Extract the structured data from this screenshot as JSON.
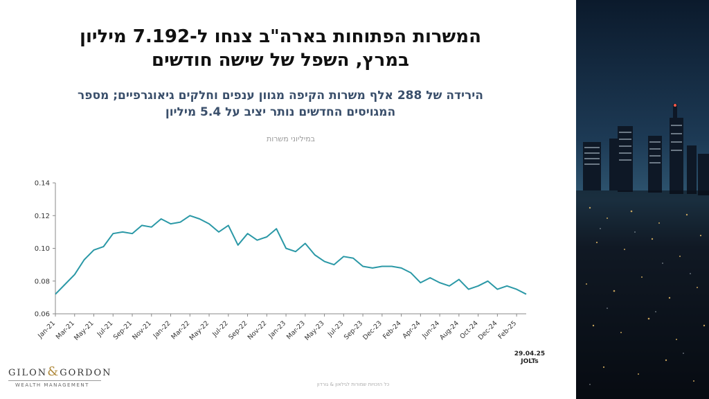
{
  "header": {
    "title_line1": "המשרות הפתוחות בארה\"ב צנחו ל-7.192 מיליון",
    "title_line2": "במרץ, השפל של שישה חודשים",
    "subtitle_line1": "הירידה של 288 אלף משרות הקיפה מגוון ענפים וחלקים גיאוגרפיים; מספר",
    "subtitle_line2": "המגויסים החדשים נותר יציב על 5.4 מיליון",
    "units": "במיליוני משרות"
  },
  "source": {
    "date": "29.04.25",
    "name": "JOLTs"
  },
  "logo": {
    "left": "GILON",
    "amp": "&",
    "right": "GORDON",
    "sub": "WEALTH MANAGEMENT"
  },
  "footer": "כל הזכויות שמורות לגילאון & גורדון",
  "colors": {
    "line": "#2a98a6",
    "title": "#111111",
    "subtitle": "#3a4f6b"
  },
  "photo_icon": "city-night-skyline",
  "chart_data": {
    "type": "line",
    "title": "",
    "xlabel": "",
    "ylabel": "",
    "ylim": [
      0.06,
      0.14
    ],
    "yticks": [
      0.06,
      0.08,
      0.1,
      0.12,
      0.14
    ],
    "ytick_labels": [
      "0.06",
      "0.08",
      "0.10",
      "0.12",
      "0.14"
    ],
    "grid": false,
    "legend": "none",
    "x": [
      "Jan-21",
      "Feb-21",
      "Mar-21",
      "Apr-21",
      "May-21",
      "Jun-21",
      "Jul-21",
      "Aug-21",
      "Sep-21",
      "Oct-21",
      "Nov-21",
      "Dec-21",
      "Jan-22",
      "Feb-22",
      "Mar-22",
      "Apr-22",
      "May-22",
      "Jun-22",
      "Jul-22",
      "Aug-22",
      "Sep-22",
      "Oct-22",
      "Nov-22",
      "Dec-22",
      "Jan-23",
      "Feb-23",
      "Mar-23",
      "Apr-23",
      "May-23",
      "Jun-23",
      "Jul-23",
      "Aug-23",
      "Sep-23",
      "Nov-23",
      "Dec-23",
      "Jan-24",
      "Feb-24",
      "Mar-24",
      "Apr-24",
      "May-24",
      "Jun-24",
      "Jul-24",
      "Aug-24",
      "Sep-24",
      "Oct-24",
      "Nov-24",
      "Dec-24",
      "Jan-25",
      "Feb-25",
      "Mar-25"
    ],
    "xtick_labels": [
      "Jan-21",
      "Mar-21",
      "May-21",
      "Jul-21",
      "Sep-21",
      "Nov-21",
      "Jan-22",
      "Mar-22",
      "May-22",
      "Jul-22",
      "Sep-22",
      "Nov-22",
      "Jan-23",
      "Mar-23",
      "May-23",
      "Jul-23",
      "Sep-23",
      "Dec-23",
      "Feb-24",
      "Apr-24",
      "Jun-24",
      "Aug-24",
      "Oct-24",
      "Dec-24",
      "Feb-25"
    ],
    "series": [
      {
        "values": [
          0.072,
          0.078,
          0.084,
          0.093,
          0.099,
          0.101,
          0.109,
          0.11,
          0.109,
          0.114,
          0.113,
          0.118,
          0.115,
          0.116,
          0.12,
          0.118,
          0.115,
          0.11,
          0.114,
          0.102,
          0.109,
          0.105,
          0.107,
          0.112,
          0.1,
          0.098,
          0.103,
          0.096,
          0.092,
          0.09,
          0.095,
          0.094,
          0.089,
          0.088,
          0.089,
          0.089,
          0.088,
          0.085,
          0.079,
          0.082,
          0.079,
          0.077,
          0.081,
          0.075,
          0.077,
          0.08,
          0.075,
          0.077,
          0.075,
          0.072
        ]
      }
    ]
  }
}
